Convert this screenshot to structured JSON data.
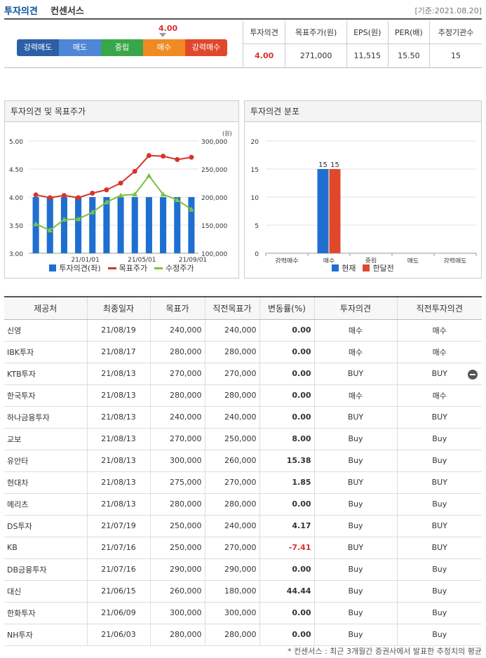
{
  "header": {
    "title_main": "투자의견",
    "title_sub": "컨센서스",
    "date_label": "[기준:2021.08.20]"
  },
  "consensus": {
    "opinion_value": "4.00",
    "scale": [
      {
        "label": "강력매도",
        "color": "#2c5fa8"
      },
      {
        "label": "매도",
        "color": "#4f86d6"
      },
      {
        "label": "중립",
        "color": "#3aa64a"
      },
      {
        "label": "매수",
        "color": "#f08a24"
      },
      {
        "label": "강력매수",
        "color": "#e0482c"
      }
    ],
    "summary_headers": [
      "투자의견",
      "목표주가(원)",
      "EPS(원)",
      "PER(배)",
      "추정기관수"
    ],
    "summary_values": [
      "4.00",
      "271,000",
      "11,515",
      "15.50",
      "15"
    ]
  },
  "panels": {
    "left_title": "투자의견 및 목표주가",
    "right_title": "투자의견 분포"
  },
  "chart_data": [
    {
      "type": "bar",
      "title": "투자의견 및 목표주가",
      "y_left": {
        "ylim": [
          3.0,
          5.0
        ],
        "ticks": [
          "5.00",
          "4.50",
          "4.00",
          "3.50",
          "3.00"
        ]
      },
      "y_right": {
        "unit": "(원)",
        "ylim": [
          100000,
          300000
        ],
        "ticks": [
          "300,000",
          "250,000",
          "200,000",
          "150,000",
          "100,000"
        ]
      },
      "x_ticks": [
        "21/01/01",
        "21/05/01",
        "21/09/01"
      ],
      "series": [
        {
          "name": "투자의견(좌)",
          "kind": "bar",
          "color": "#1f6fd1",
          "values": [
            4.0,
            4.0,
            4.0,
            4.0,
            4.0,
            4.0,
            4.0,
            4.0,
            4.0,
            4.0,
            4.0,
            4.0
          ]
        },
        {
          "name": "목표주가",
          "kind": "line",
          "color": "#d9322b",
          "values": [
            204000,
            199000,
            203000,
            199000,
            207000,
            213000,
            225000,
            246000,
            274000,
            273000,
            267000,
            271000
          ]
        },
        {
          "name": "수정주가",
          "kind": "line",
          "color": "#7cc142",
          "values": [
            152000,
            141000,
            160000,
            161000,
            173000,
            191000,
            203000,
            205000,
            238000,
            205000,
            195000,
            178000
          ]
        }
      ]
    },
    {
      "type": "bar",
      "title": "투자의견 분포",
      "categories": [
        "강력매수",
        "매수",
        "중립",
        "매도",
        "강력매도"
      ],
      "ylim": [
        0,
        20
      ],
      "y_ticks": [
        "20",
        "15",
        "10",
        "5",
        "0"
      ],
      "series": [
        {
          "name": "현재",
          "color": "#1f6fd1",
          "values": [
            0,
            15,
            0,
            0,
            0
          ]
        },
        {
          "name": "한달전",
          "color": "#e0482c",
          "values": [
            0,
            15,
            0,
            0,
            0
          ]
        }
      ],
      "data_labels": [
        "15",
        "15"
      ]
    }
  ],
  "table": {
    "headers": [
      "제공처",
      "최종일자",
      "목표가",
      "직전목표가",
      "변동률(%)",
      "투자의견",
      "직전투자의견"
    ],
    "rows": [
      [
        "신영",
        "21/08/19",
        "240,000",
        "240,000",
        "0.00",
        "매수",
        "매수"
      ],
      [
        "IBK투자",
        "21/08/17",
        "280,000",
        "280,000",
        "0.00",
        "매수",
        "매수"
      ],
      [
        "KTB투자",
        "21/08/13",
        "270,000",
        "270,000",
        "0.00",
        "BUY",
        "BUY"
      ],
      [
        "한국투자",
        "21/08/13",
        "280,000",
        "280,000",
        "0.00",
        "매수",
        "매수"
      ],
      [
        "하나금융투자",
        "21/08/13",
        "240,000",
        "240,000",
        "0.00",
        "BUY",
        "BUY"
      ],
      [
        "교보",
        "21/08/13",
        "270,000",
        "250,000",
        "8.00",
        "Buy",
        "Buy"
      ],
      [
        "유안타",
        "21/08/13",
        "300,000",
        "260,000",
        "15.38",
        "Buy",
        "Buy"
      ],
      [
        "현대차",
        "21/08/13",
        "275,000",
        "270,000",
        "1.85",
        "BUY",
        "BUY"
      ],
      [
        "메리츠",
        "21/08/13",
        "280,000",
        "280,000",
        "0.00",
        "Buy",
        "Buy"
      ],
      [
        "DS투자",
        "21/07/19",
        "250,000",
        "240,000",
        "4.17",
        "Buy",
        "BUY"
      ],
      [
        "KB",
        "21/07/16",
        "250,000",
        "270,000",
        "-7.41",
        "BUY",
        "BUY"
      ],
      [
        "DB금융투자",
        "21/07/16",
        "290,000",
        "290,000",
        "0.00",
        "Buy",
        "Buy"
      ],
      [
        "대신",
        "21/06/15",
        "260,000",
        "180,000",
        "44.44",
        "Buy",
        "Buy"
      ],
      [
        "한화투자",
        "21/06/09",
        "300,000",
        "300,000",
        "0.00",
        "Buy",
        "Buy"
      ],
      [
        "NH투자",
        "21/06/03",
        "280,000",
        "280,000",
        "0.00",
        "Buy",
        "Buy"
      ]
    ]
  },
  "footnote": "* 컨센서스 : 최근 3개월간 증권사에서 발표한 추정치의 평균"
}
